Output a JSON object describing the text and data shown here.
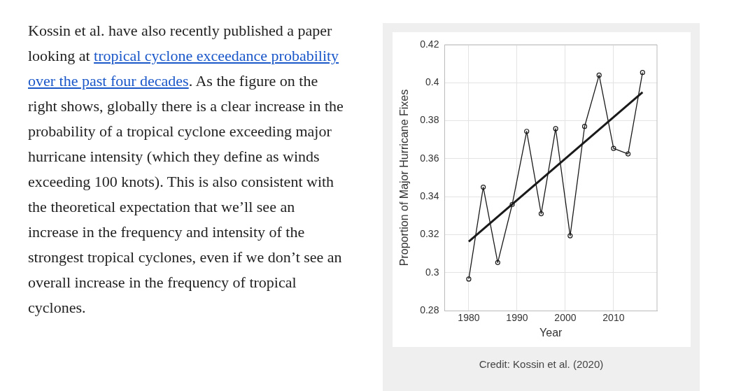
{
  "chart_data": {
    "type": "line",
    "xlabel": "Year",
    "ylabel": "Proportion of Major Hurricane Fixes",
    "xlim": [
      1975,
      2019
    ],
    "xticks": [
      1980,
      1990,
      2000,
      2010
    ],
    "ylim": [
      0.28,
      0.42
    ],
    "yticks": [
      0.28,
      0.3,
      0.32,
      0.34,
      0.36,
      0.38,
      0.4,
      0.42
    ],
    "grid": true,
    "legend": false,
    "marker": "circle",
    "line_style": "solid",
    "series": [
      {
        "color": "#1a1a1a",
        "x": [
          1980,
          1983,
          1986,
          1989,
          1992,
          1995,
          1998,
          2001,
          2004,
          2007,
          2010,
          2013,
          2016
        ],
        "values": [
          0.2966,
          0.345,
          0.3053,
          0.3359,
          0.3744,
          0.331,
          0.3758,
          0.3194,
          0.377,
          0.404,
          0.3654,
          0.3625,
          0.4054
        ]
      },
      {
        "type": "line",
        "color": "#1a1a1a",
        "marker": "none",
        "x": [
          1980,
          2016
        ],
        "values": [
          0.3163,
          0.395
        ]
      }
    ],
    "annotations": [
      "Kossin et al. have also recently published a paper looking at ",
      "tropical cyclone exceedance probability over the past four decades",
      ". As the figure on the right shows, globally there is a clear increase in the probability of a tropical cyclone exceeding major hurricane intensity (which they define as winds exceeding 100 knots). This is also consistent with the theoretical expectation that we’ll see an increase in the frequency and intensity of the strongest tropical cyclones, even if we don’t see an overall increase in the frequency of tropical cyclones.",
      "Credit: Kossin et al. (2020)"
    ]
  }
}
